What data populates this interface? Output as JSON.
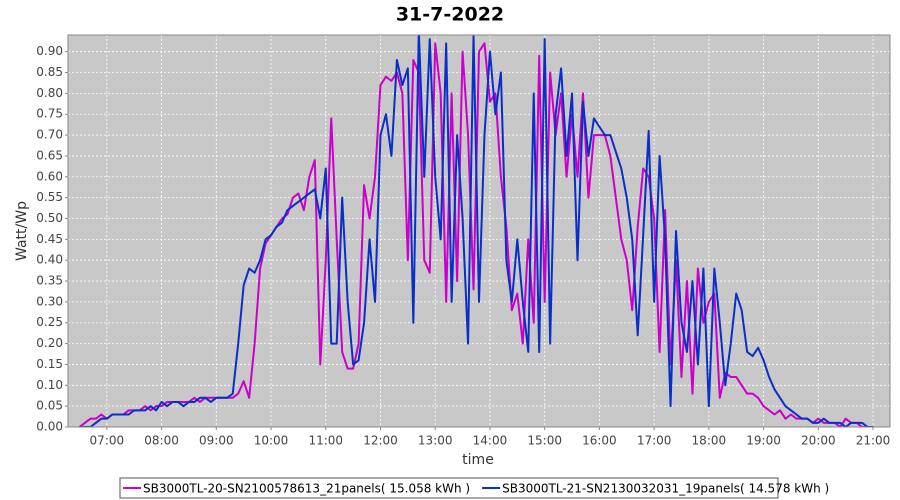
{
  "chart_data": {
    "type": "line",
    "title": "31-7-2022",
    "x_label": "time",
    "y_label": "Watt/Wp",
    "x": [
      6.5,
      6.6,
      6.7,
      6.8,
      6.9,
      7,
      7.1,
      7.2,
      7.3,
      7.4,
      7.5,
      7.6,
      7.7,
      7.8,
      7.9,
      8,
      8.1,
      8.2,
      8.3,
      8.4,
      8.5,
      8.6,
      8.7,
      8.8,
      8.9,
      9,
      9.1,
      9.2,
      9.3,
      9.4,
      9.5,
      9.6,
      9.7,
      9.8,
      9.9,
      10,
      10.1,
      10.2,
      10.3,
      10.4,
      10.5,
      10.6,
      10.7,
      10.8,
      10.9,
      11,
      11.1,
      11.2,
      11.3,
      11.4,
      11.5,
      11.6,
      11.7,
      11.8,
      11.9,
      12,
      12.1,
      12.2,
      12.3,
      12.4,
      12.5,
      12.6,
      12.7,
      12.8,
      12.9,
      13,
      13.1,
      13.2,
      13.3,
      13.4,
      13.5,
      13.6,
      13.7,
      13.8,
      13.9,
      14,
      14.1,
      14.2,
      14.3,
      14.4,
      14.5,
      14.6,
      14.7,
      14.8,
      14.9,
      15,
      15.1,
      15.2,
      15.3,
      15.4,
      15.5,
      15.6,
      15.7,
      15.8,
      15.9,
      16,
      16.1,
      16.2,
      16.3,
      16.4,
      16.5,
      16.6,
      16.7,
      16.8,
      16.9,
      17,
      17.1,
      17.2,
      17.3,
      17.4,
      17.5,
      17.6,
      17.7,
      17.8,
      17.9,
      18,
      18.1,
      18.2,
      18.3,
      18.4,
      18.5,
      18.6,
      18.7,
      18.8,
      18.9,
      19,
      19.1,
      19.2,
      19.3,
      19.4,
      19.5,
      19.6,
      19.7,
      19.8,
      19.9,
      20,
      20.1,
      20.2,
      20.3,
      20.4,
      20.5,
      20.6,
      20.7,
      20.8,
      20.9,
      21
    ],
    "series": [
      {
        "name": "SB3000TL-20-SN2100578613_21panels( 15.058 kWh )",
        "color": "#cc00cc",
        "values": [
          0,
          0.01,
          0.02,
          0.02,
          0.03,
          0.02,
          0.03,
          0.03,
          0.03,
          0.04,
          0.04,
          0.04,
          0.05,
          0.04,
          0.05,
          0.05,
          0.06,
          0.06,
          0.06,
          0.06,
          0.06,
          0.07,
          0.06,
          0.07,
          0.07,
          0.07,
          0.07,
          0.07,
          0.07,
          0.08,
          0.11,
          0.07,
          0.2,
          0.38,
          0.44,
          0.46,
          0.48,
          0.5,
          0.51,
          0.55,
          0.56,
          0.52,
          0.6,
          0.64,
          0.15,
          0.4,
          0.74,
          0.45,
          0.18,
          0.14,
          0.14,
          0.2,
          0.58,
          0.5,
          0.6,
          0.82,
          0.84,
          0.83,
          0.85,
          0.8,
          0.4,
          0.88,
          0.85,
          0.4,
          0.37,
          0.92,
          0.8,
          0.3,
          0.8,
          0.35,
          0.9,
          0.7,
          0.33,
          0.9,
          0.92,
          0.78,
          0.8,
          0.6,
          0.48,
          0.28,
          0.32,
          0.2,
          0.45,
          0.25,
          0.89,
          0.3,
          0.85,
          0.7,
          0.8,
          0.6,
          0.75,
          0.6,
          0.8,
          0.55,
          0.7,
          0.7,
          0.7,
          0.65,
          0.55,
          0.45,
          0.4,
          0.28,
          0.48,
          0.62,
          0.6,
          0.5,
          0.18,
          0.52,
          0.15,
          0.4,
          0.12,
          0.35,
          0.08,
          0.38,
          0.25,
          0.3,
          0.32,
          0.07,
          0.13,
          0.12,
          0.12,
          0.1,
          0.08,
          0.08,
          0.07,
          0.05,
          0.04,
          0.03,
          0.04,
          0.02,
          0.03,
          0.02,
          0.02,
          0.02,
          0.01,
          0.02,
          0.01,
          0.01,
          0.01,
          0,
          0.02,
          0.01,
          0.01,
          0,
          0,
          0
        ]
      },
      {
        "name": "SB3000TL-21-SN2130032031_19panels( 14.578 kWh )",
        "color": "#0a2fc8",
        "values": [
          0,
          0,
          0,
          0.01,
          0.02,
          0.02,
          0.03,
          0.03,
          0.03,
          0.03,
          0.04,
          0.04,
          0.04,
          0.05,
          0.04,
          0.06,
          0.05,
          0.06,
          0.06,
          0.05,
          0.06,
          0.06,
          0.07,
          0.07,
          0.06,
          0.07,
          0.07,
          0.07,
          0.08,
          0.2,
          0.34,
          0.38,
          0.37,
          0.4,
          0.45,
          0.46,
          0.48,
          0.49,
          0.52,
          0.53,
          0.54,
          0.55,
          0.56,
          0.57,
          0.5,
          0.62,
          0.2,
          0.2,
          0.55,
          0.3,
          0.15,
          0.16,
          0.25,
          0.45,
          0.3,
          0.7,
          0.75,
          0.65,
          0.88,
          0.82,
          0.86,
          0.25,
          0.95,
          0.6,
          0.93,
          0.6,
          0.45,
          0.92,
          0.3,
          0.7,
          0.5,
          0.2,
          0.94,
          0.3,
          0.7,
          0.9,
          0.75,
          0.85,
          0.4,
          0.3,
          0.45,
          0.3,
          0.18,
          0.8,
          0.18,
          0.93,
          0.2,
          0.75,
          0.86,
          0.65,
          0.8,
          0.4,
          0.78,
          0.65,
          0.74,
          0.72,
          0.7,
          0.7,
          0.66,
          0.62,
          0.55,
          0.45,
          0.22,
          0.46,
          0.71,
          0.3,
          0.65,
          0.45,
          0.05,
          0.47,
          0.25,
          0.18,
          0.35,
          0.15,
          0.38,
          0.05,
          0.38,
          0.25,
          0.1,
          0.2,
          0.32,
          0.28,
          0.18,
          0.17,
          0.19,
          0.16,
          0.12,
          0.09,
          0.07,
          0.05,
          0.04,
          0.03,
          0.02,
          0.02,
          0.01,
          0.01,
          0.02,
          0.01,
          0.01,
          0.01,
          0,
          0.01,
          0.01,
          0.01,
          0,
          0
        ]
      }
    ],
    "xlim": [
      6.29,
      21.31
    ],
    "xticks": [
      {
        "value": 7,
        "label": "07:00"
      },
      {
        "value": 8,
        "label": "08:00"
      },
      {
        "value": 9,
        "label": "09:00"
      },
      {
        "value": 10,
        "label": "10:00"
      },
      {
        "value": 11,
        "label": "11:00"
      },
      {
        "value": 12,
        "label": "12:00"
      },
      {
        "value": 13,
        "label": "13:00"
      },
      {
        "value": 14,
        "label": "14:00"
      },
      {
        "value": 15,
        "label": "15:00"
      },
      {
        "value": 16,
        "label": "16:00"
      },
      {
        "value": 17,
        "label": "17:00"
      },
      {
        "value": 18,
        "label": "18:00"
      },
      {
        "value": 19,
        "label": "19:00"
      },
      {
        "value": 20,
        "label": "20:00"
      },
      {
        "value": 21,
        "label": "21:00"
      }
    ],
    "ylim": [
      0,
      0.94
    ],
    "yticks": [
      {
        "value": 0,
        "label": "0.00"
      },
      {
        "value": 0.05,
        "label": "0.05"
      },
      {
        "value": 0.1,
        "label": "0.10"
      },
      {
        "value": 0.15,
        "label": "0.15"
      },
      {
        "value": 0.2,
        "label": "0.20"
      },
      {
        "value": 0.25,
        "label": "0.25"
      },
      {
        "value": 0.3,
        "label": "0.30"
      },
      {
        "value": 0.35,
        "label": "0.35"
      },
      {
        "value": 0.4,
        "label": "0.40"
      },
      {
        "value": 0.45,
        "label": "0.45"
      },
      {
        "value": 0.5,
        "label": "0.50"
      },
      {
        "value": 0.55,
        "label": "0.55"
      },
      {
        "value": 0.6,
        "label": "0.60"
      },
      {
        "value": 0.65,
        "label": "0.65"
      },
      {
        "value": 0.7,
        "label": "0.70"
      },
      {
        "value": 0.75,
        "label": "0.75"
      },
      {
        "value": 0.8,
        "label": "0.80"
      },
      {
        "value": 0.85,
        "label": "0.85"
      },
      {
        "value": 0.9,
        "label": "0.90"
      }
    ],
    "grid": true
  }
}
